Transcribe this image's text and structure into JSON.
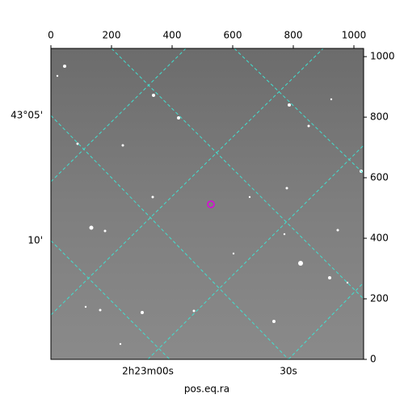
{
  "chart_data": {
    "type": "image",
    "xlabel": "pos.eq.ra",
    "xlim": [
      0,
      1032
    ],
    "ylim": [
      0,
      1027
    ],
    "xticks": [
      0,
      200,
      400,
      600,
      800,
      1000
    ],
    "yticks": [
      0,
      200,
      400,
      600,
      800,
      1000
    ],
    "ra_labels": [
      "2h23m00s",
      "30s"
    ],
    "dec_labels": [
      "43°05'",
      "10'"
    ]
  }
}
